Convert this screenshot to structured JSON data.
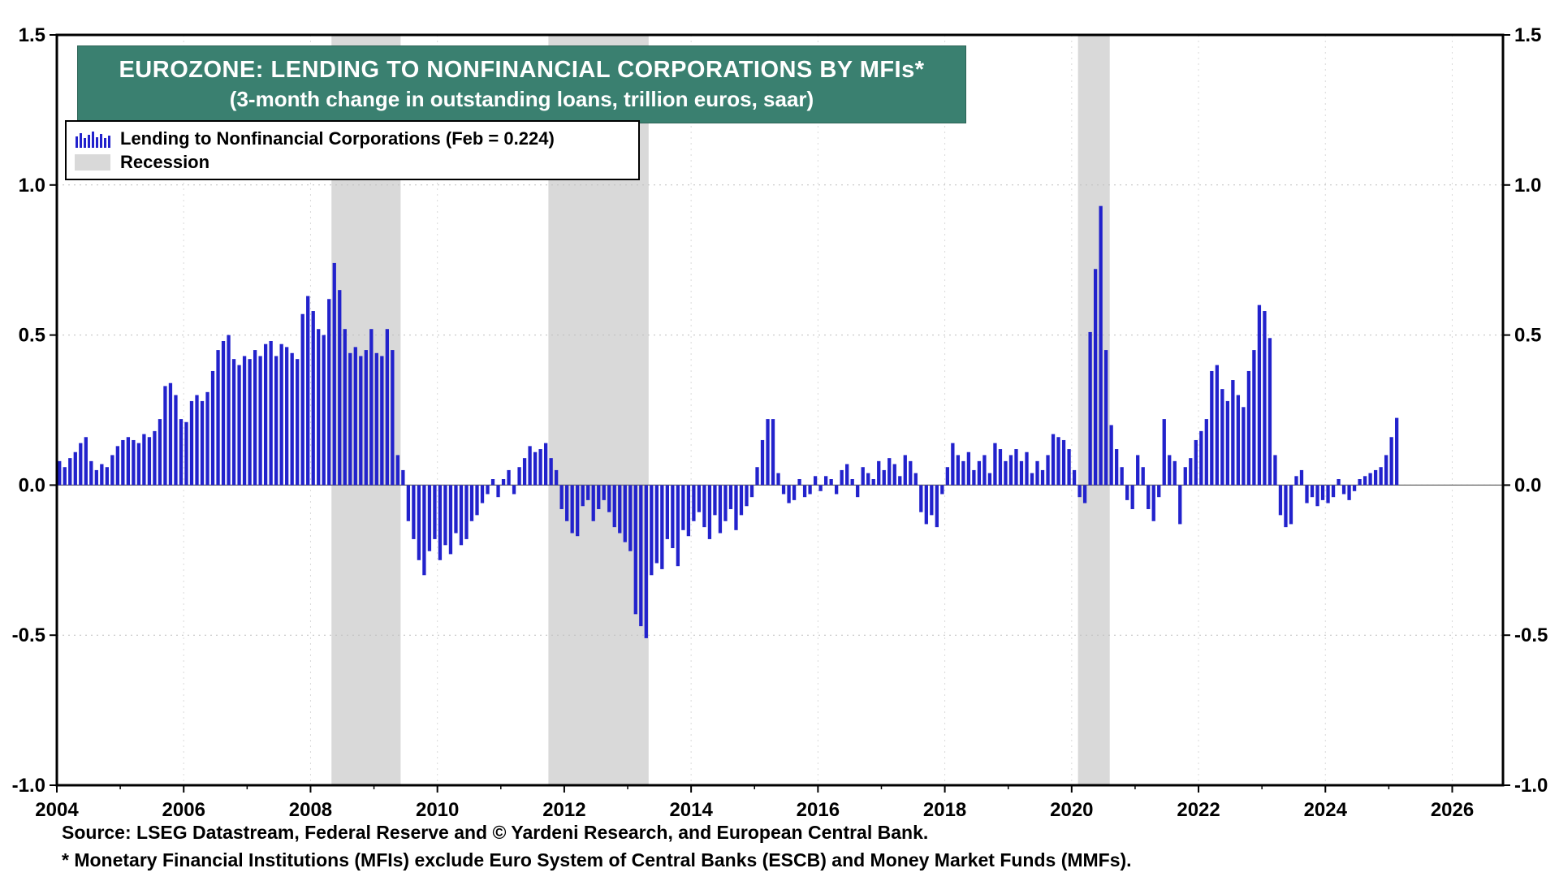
{
  "header": {
    "title_line1": "EUROZONE: LENDING TO NONFINANCIAL CORPORATIONS BY MFIs*",
    "title_line2": "(3-month change in outstanding loans, trillion euros, saar)",
    "title_bg_color": "#3a8070"
  },
  "legend": {
    "series_label": "Lending to Nonfinancial Corporations (Feb = 0.224)",
    "recession_label": "Recession"
  },
  "footer": {
    "source_line": "Source: LSEG Datastream, Federal Reserve and © Yardeni Research, and European Central Bank.",
    "note_line": "* Monetary Financial Institutions (MFIs) exclude Euro System of Central Banks (ESCB) and Money Market Funds (MMFs)."
  },
  "chart_data": {
    "type": "bar",
    "title": "Eurozone: Lending to Nonfinancial Corporations by MFIs (3-month change in outstanding loans, trillion euros, saar)",
    "series_name": "Lending to Nonfinancial Corporations",
    "last_point_label": "Feb = 0.224",
    "frequency": "monthly",
    "start": {
      "year": 2004,
      "month": 1
    },
    "x_range": [
      2004.0,
      2026.8
    ],
    "ylim": [
      -1.0,
      1.5
    ],
    "grid": true,
    "legend_position": "top-left",
    "y_ticks": [
      -1.0,
      -0.5,
      0.0,
      0.5,
      1.0,
      1.5
    ],
    "y_tick_labels": [
      "-1.0",
      "-0.5",
      "0.0",
      "0.5",
      "1.0",
      "1.5"
    ],
    "x_tick_years": [
      2004,
      2006,
      2008,
      2010,
      2012,
      2014,
      2016,
      2018,
      2020,
      2022,
      2024,
      2026
    ],
    "x_tick_labels": [
      "2004",
      "2006",
      "2008",
      "2010",
      "2012",
      "2014",
      "2016",
      "2018",
      "2020",
      "2022",
      "2024",
      "2026"
    ],
    "recessions": [
      [
        2008.33,
        2009.42
      ],
      [
        2011.75,
        2013.33
      ],
      [
        2020.1,
        2020.6
      ]
    ],
    "bar_color": "#2222cc",
    "recession_color": "#d9d9d9",
    "values": [
      0.08,
      0.06,
      0.09,
      0.11,
      0.14,
      0.16,
      0.08,
      0.05,
      0.07,
      0.06,
      0.1,
      0.13,
      0.15,
      0.16,
      0.15,
      0.14,
      0.17,
      0.16,
      0.18,
      0.22,
      0.33,
      0.34,
      0.3,
      0.22,
      0.21,
      0.28,
      0.3,
      0.28,
      0.31,
      0.38,
      0.45,
      0.48,
      0.5,
      0.42,
      0.4,
      0.43,
      0.42,
      0.45,
      0.43,
      0.47,
      0.48,
      0.43,
      0.47,
      0.46,
      0.44,
      0.42,
      0.57,
      0.63,
      0.58,
      0.52,
      0.5,
      0.62,
      0.74,
      0.65,
      0.52,
      0.44,
      0.46,
      0.43,
      0.45,
      0.52,
      0.44,
      0.43,
      0.52,
      0.45,
      0.1,
      0.05,
      -0.12,
      -0.18,
      -0.25,
      -0.3,
      -0.22,
      -0.18,
      -0.25,
      -0.2,
      -0.23,
      -0.16,
      -0.2,
      -0.18,
      -0.12,
      -0.1,
      -0.06,
      -0.03,
      0.02,
      -0.04,
      0.02,
      0.05,
      -0.03,
      0.06,
      0.09,
      0.13,
      0.11,
      0.12,
      0.14,
      0.09,
      0.05,
      -0.08,
      -0.12,
      -0.16,
      -0.17,
      -0.07,
      -0.05,
      -0.12,
      -0.08,
      -0.05,
      -0.09,
      -0.14,
      -0.16,
      -0.19,
      -0.22,
      -0.43,
      -0.47,
      -0.51,
      -0.3,
      -0.26,
      -0.28,
      -0.18,
      -0.21,
      -0.27,
      -0.15,
      -0.17,
      -0.12,
      -0.09,
      -0.14,
      -0.18,
      -0.1,
      -0.16,
      -0.12,
      -0.08,
      -0.15,
      -0.1,
      -0.07,
      -0.04,
      0.06,
      0.15,
      0.22,
      0.22,
      0.04,
      -0.03,
      -0.06,
      -0.05,
      0.02,
      -0.04,
      -0.03,
      0.03,
      -0.02,
      0.03,
      0.02,
      -0.03,
      0.05,
      0.07,
      0.02,
      -0.04,
      0.06,
      0.04,
      0.02,
      0.08,
      0.05,
      0.09,
      0.07,
      0.03,
      0.1,
      0.08,
      0.04,
      -0.09,
      -0.13,
      -0.1,
      -0.14,
      -0.03,
      0.06,
      0.14,
      0.1,
      0.08,
      0.11,
      0.05,
      0.08,
      0.1,
      0.04,
      0.14,
      0.12,
      0.08,
      0.1,
      0.12,
      0.08,
      0.11,
      0.04,
      0.08,
      0.05,
      0.1,
      0.17,
      0.16,
      0.15,
      0.12,
      0.05,
      -0.04,
      -0.06,
      0.51,
      0.72,
      0.93,
      0.45,
      0.2,
      0.12,
      0.06,
      -0.05,
      -0.08,
      0.1,
      0.06,
      -0.08,
      -0.12,
      -0.04,
      0.22,
      0.1,
      0.08,
      -0.13,
      0.06,
      0.09,
      0.15,
      0.18,
      0.22,
      0.38,
      0.4,
      0.32,
      0.28,
      0.35,
      0.3,
      0.26,
      0.38,
      0.45,
      0.6,
      0.58,
      0.49,
      0.1,
      -0.1,
      -0.14,
      -0.13,
      0.03,
      0.05,
      -0.06,
      -0.04,
      -0.07,
      -0.05,
      -0.06,
      -0.04,
      0.02,
      -0.03,
      -0.05,
      -0.02,
      0.02,
      0.03,
      0.04,
      0.05,
      0.06,
      0.1,
      0.16,
      0.224
    ]
  }
}
